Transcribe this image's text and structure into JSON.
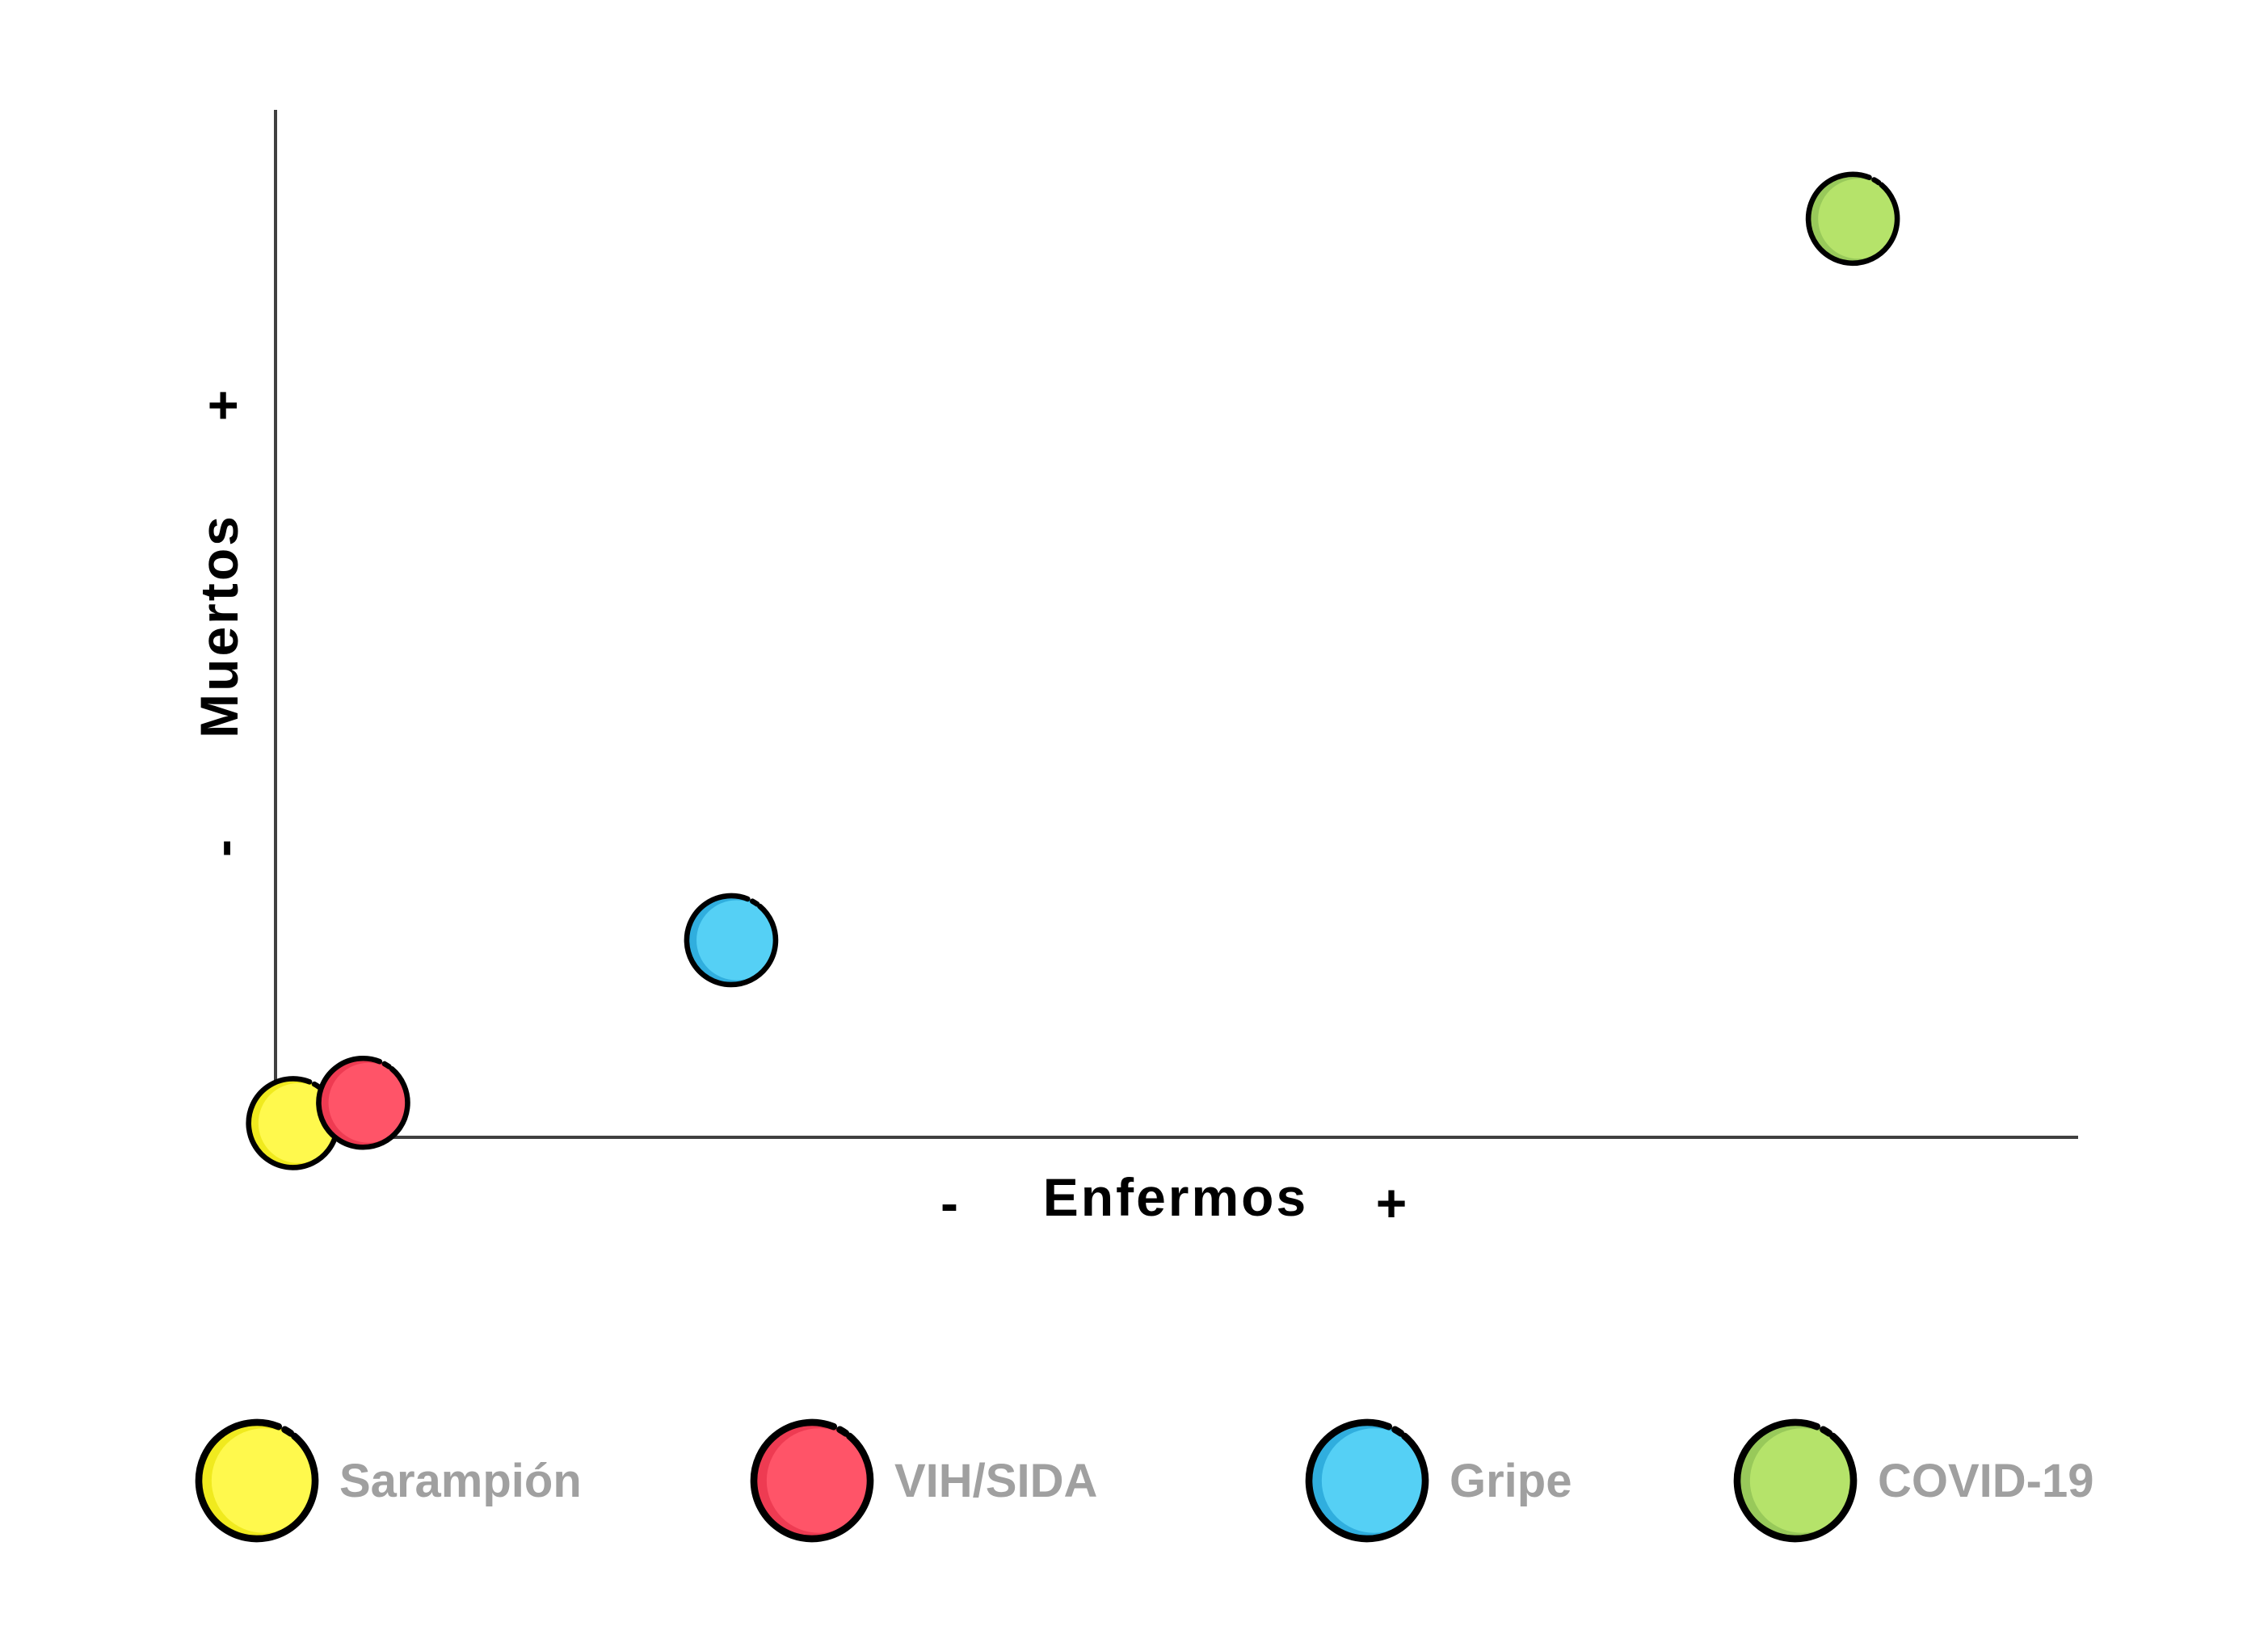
{
  "chart_data": {
    "type": "scatter",
    "title": "",
    "xlabel": "Enfermos",
    "ylabel": "Muertos",
    "x_min_label": "-",
    "x_max_label": "+",
    "y_min_label": "-",
    "y_max_label": "+",
    "xlim": [
      0,
      100
    ],
    "ylim": [
      0,
      100
    ],
    "grid": false,
    "legend_position": "bottom",
    "series": [
      {
        "name": "Sarampión",
        "x": 1,
        "y": 1,
        "color": "#fff94d",
        "shade": "#f0ea1e"
      },
      {
        "name": "VIH/SIDA",
        "x": 5,
        "y": 3,
        "color": "#ff5468",
        "shade": "#ee3b52"
      },
      {
        "name": "Gripe",
        "x": 26,
        "y": 19,
        "color": "#55d0f5",
        "shade": "#30aede"
      },
      {
        "name": "COVID-19",
        "x": 90,
        "y": 90,
        "color": "#b5e36a",
        "shade": "#98c95a"
      }
    ]
  },
  "colors": {
    "axis": "#404040",
    "outline": "#000000",
    "legend_text": "#a0a0a0"
  }
}
